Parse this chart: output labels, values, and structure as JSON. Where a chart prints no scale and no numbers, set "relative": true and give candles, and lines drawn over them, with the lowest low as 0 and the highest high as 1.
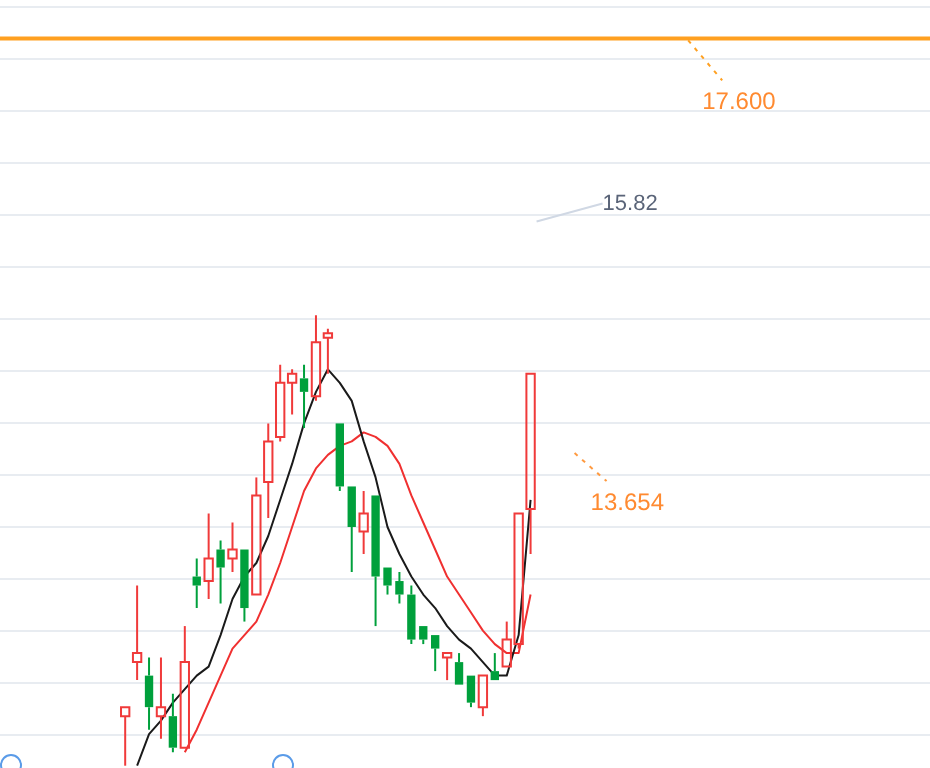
{
  "chart_data": {
    "type": "candlestick",
    "relative": true,
    "tick_labels": false,
    "grid": "y",
    "categories": [
      null,
      null,
      null,
      null,
      null,
      null,
      null,
      null,
      null,
      null,
      null,
      null,
      null,
      null,
      null,
      null,
      null,
      null,
      null,
      null,
      null,
      null,
      null,
      null,
      null,
      null,
      null,
      null,
      null,
      null,
      null,
      null,
      null,
      null,
      null,
      null,
      null,
      null,
      null,
      null,
      null,
      null,
      null,
      null,
      null,
      null,
      null,
      null,
      null,
      null,
      null,
      null,
      null,
      null,
      null,
      null,
      null,
      null,
      null,
      null,
      null,
      null,
      null,
      null,
      null,
      null,
      null,
      null,
      null,
      null,
      null,
      null,
      null,
      null,
      null,
      null,
      null,
      null
    ],
    "ohlc": [
      null,
      null,
      null,
      null,
      null,
      null,
      null,
      null,
      null,
      null,
      [
        0.11,
        0.13,
        0.0,
        0.13
      ],
      [
        0.23,
        0.4,
        0.19,
        0.25
      ],
      [
        0.2,
        0.24,
        0.08,
        0.13
      ],
      [
        0.11,
        0.24,
        0.06,
        0.13
      ],
      [
        0.11,
        0.16,
        0.03,
        0.04
      ],
      [
        0.04,
        0.31,
        0.04,
        0.23
      ],
      [
        0.42,
        0.46,
        0.35,
        0.4
      ],
      [
        0.41,
        0.56,
        0.37,
        0.46
      ],
      [
        0.48,
        0.5,
        0.36,
        0.44
      ],
      [
        0.46,
        0.54,
        0.43,
        0.48
      ],
      [
        0.48,
        0.48,
        0.32,
        0.35
      ],
      [
        0.38,
        0.64,
        0.38,
        0.6
      ],
      [
        0.63,
        0.76,
        0.55,
        0.72
      ],
      [
        0.73,
        0.89,
        0.72,
        0.85
      ],
      [
        0.85,
        0.88,
        0.78,
        0.87
      ],
      [
        0.86,
        0.89,
        0.75,
        0.83
      ],
      [
        0.82,
        1.0,
        0.81,
        0.94
      ],
      [
        0.95,
        0.97,
        0.87,
        0.96
      ],
      [
        0.76,
        0.76,
        0.61,
        0.62
      ],
      [
        0.62,
        0.62,
        0.43,
        0.53
      ],
      [
        0.52,
        0.61,
        0.47,
        0.56
      ],
      [
        0.6,
        0.6,
        0.31,
        0.42
      ],
      [
        0.44,
        0.44,
        0.38,
        0.4
      ],
      [
        0.41,
        0.43,
        0.36,
        0.38
      ],
      [
        0.38,
        0.4,
        0.27,
        0.28
      ],
      [
        0.31,
        0.31,
        0.27,
        0.28
      ],
      [
        0.29,
        0.29,
        0.21,
        0.26
      ],
      [
        0.24,
        0.25,
        0.19,
        0.25
      ],
      [
        0.23,
        0.25,
        0.18,
        0.18
      ],
      [
        0.2,
        0.2,
        0.13,
        0.14
      ],
      [
        0.13,
        0.2,
        0.11,
        0.2
      ],
      [
        0.21,
        0.25,
        0.19,
        0.19
      ],
      [
        0.22,
        0.32,
        0.22,
        0.28
      ],
      [
        0.27,
        0.56,
        0.26,
        0.56
      ],
      [
        0.57,
        0.87,
        0.47,
        0.87
      ],
      null,
      null,
      null,
      null,
      null,
      null,
      null,
      null,
      null,
      null,
      null,
      null,
      null,
      null,
      null,
      null,
      null,
      null,
      null,
      null,
      null,
      null,
      null,
      null,
      null,
      null,
      null,
      null,
      null,
      null,
      null,
      null,
      null
    ],
    "colors": [
      null,
      null,
      null,
      null,
      null,
      null,
      null,
      null,
      null,
      null,
      "#f03a3a",
      "#f03a3a",
      "#00a03c",
      "#f03a3a",
      "#00a03c",
      "#f03a3a",
      "#00a03c",
      "#f03a3a",
      "#00a03c",
      "#f03a3a",
      "#00a03c",
      "#f03a3a",
      "#f03a3a",
      "#f03a3a",
      "#f03a3a",
      "#00a03c",
      "#f03a3a",
      "#f03a3a",
      "#00a03c",
      "#00a03c",
      "#f03a3a",
      "#00a03c",
      "#00a03c",
      "#00a03c",
      "#00a03c",
      "#00a03c",
      "#00a03c",
      "#f03a3a",
      "#00a03c",
      "#00a03c",
      "#f03a3a",
      "#00a03c",
      "#f03a3a",
      "#f03a3a",
      "#f03a3a",
      null,
      null,
      null,
      null,
      null,
      null,
      null,
      null,
      null,
      null,
      null,
      null,
      null,
      null,
      null,
      null,
      null,
      null,
      null,
      null,
      null,
      null,
      null,
      null,
      null,
      null,
      null,
      null,
      null,
      null,
      null,
      null,
      null
    ],
    "series": [
      {
        "type": "line",
        "color": "#1a1a1a",
        "values": [
          null,
          null,
          null,
          null,
          null,
          null,
          null,
          null,
          null,
          null,
          null,
          0.0,
          0.07,
          0.1,
          0.14,
          0.17,
          0.2,
          0.22,
          0.29,
          0.37,
          0.42,
          0.45,
          0.51,
          0.59,
          0.67,
          0.76,
          0.83,
          0.88,
          0.85,
          0.81,
          0.72,
          0.64,
          0.53,
          0.47,
          0.42,
          0.38,
          0.35,
          0.31,
          0.28,
          0.26,
          0.23,
          0.2,
          0.2,
          0.29,
          0.59,
          null,
          null,
          null,
          null,
          null,
          null,
          null,
          null,
          null,
          null,
          null,
          null,
          null,
          null,
          null,
          null,
          null,
          null,
          null,
          null,
          null,
          null,
          null,
          null,
          null,
          null,
          null,
          null,
          null,
          null,
          null,
          null,
          null
        ]
      },
      {
        "type": "line",
        "color": "#f03030",
        "values": [
          null,
          null,
          null,
          null,
          null,
          null,
          null,
          null,
          null,
          null,
          null,
          null,
          null,
          null,
          null,
          0.03,
          0.08,
          0.14,
          0.2,
          0.26,
          0.29,
          0.32,
          0.38,
          0.45,
          0.53,
          0.61,
          0.66,
          0.69,
          0.71,
          0.72,
          0.74,
          0.73,
          0.71,
          0.67,
          0.6,
          0.54,
          0.48,
          0.42,
          0.38,
          0.34,
          0.3,
          0.27,
          0.25,
          0.25,
          0.38,
          null,
          null,
          null,
          null,
          null,
          null,
          null,
          null,
          null,
          null,
          null,
          null,
          null,
          null,
          null,
          null,
          null,
          null,
          null,
          null,
          null,
          null,
          null,
          null,
          null,
          null,
          null,
          null,
          null,
          null,
          null,
          null,
          null
        ]
      }
    ],
    "annotations": [
      "17.600",
      "15.82",
      "13.654"
    ]
  }
}
